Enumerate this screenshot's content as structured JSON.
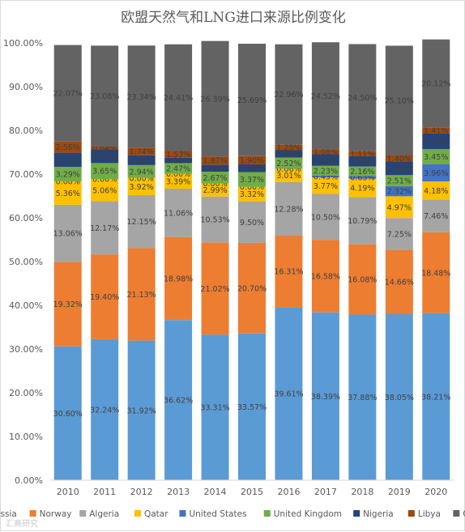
{
  "chart_data": {
    "type": "bar",
    "stacked": true,
    "title": "欧盟天然气和LNG进口来源比例变化",
    "xlabel": "",
    "ylabel": "",
    "ylim": [
      0,
      100
    ],
    "yticks": [
      "0.00%",
      "10.00%",
      "20.00%",
      "30.00%",
      "40.00%",
      "50.00%",
      "60.00%",
      "70.00%",
      "80.00%",
      "90.00%",
      "100.00%"
    ],
    "grid": false,
    "legend_position": "bottom",
    "categories": [
      "2010",
      "2011",
      "2012",
      "2013",
      "2014",
      "2015",
      "2016",
      "2017",
      "2018",
      "2019",
      "2020"
    ],
    "series": [
      {
        "name": "Russia",
        "color": "#5b9bd5",
        "values": [
          30.6,
          32.24,
          31.92,
          36.62,
          33.31,
          33.57,
          39.61,
          38.39,
          37.88,
          38.05,
          38.21
        ],
        "labels": [
          "30.60%",
          "32.24%",
          "31.92%",
          "36.62%",
          "33.31%",
          "33.57%",
          "39.61%",
          "38.39%",
          "37.88%",
          "38.05%",
          "38.21%"
        ]
      },
      {
        "name": "Norway",
        "color": "#ed7d31",
        "values": [
          19.32,
          19.4,
          21.13,
          18.98,
          21.02,
          20.7,
          16.31,
          16.58,
          16.08,
          14.66,
          18.48
        ],
        "labels": [
          "19.32%",
          "19.40%",
          "21.13%",
          "18.98%",
          "21.02%",
          "20.70%",
          "16.31%",
          "16.58%",
          "16.08%",
          "14.66%",
          "18.48%"
        ]
      },
      {
        "name": "Algeria",
        "color": "#a5a5a5",
        "values": [
          13.06,
          12.17,
          12.15,
          11.06,
          10.53,
          9.5,
          12.28,
          10.5,
          10.79,
          7.25,
          7.46
        ],
        "labels": [
          "13.06%",
          "12.17%",
          "12.15%",
          "11.06%",
          "10.53%",
          "9.50%",
          "12.28%",
          "10.50%",
          "10.79%",
          "7.25%",
          "7.46%"
        ]
      },
      {
        "name": "Qatar",
        "color": "#ffc000",
        "values": [
          5.36,
          5.06,
          3.92,
          3.39,
          2.99,
          3.32,
          3.01,
          3.77,
          4.19,
          4.97,
          4.18
        ],
        "labels": [
          "5.36%",
          "5.06%",
          "3.92%",
          "3.39%",
          "2.99%",
          "3.32%",
          "3.01%",
          "3.77%",
          "4.19%",
          "4.97%",
          "4.18%"
        ]
      },
      {
        "name": "United States",
        "color": "#4472c4",
        "values": [
          0.0,
          0.0,
          0.0,
          0.0,
          0.0,
          0.0,
          0.06,
          0.43,
          0.63,
          2.32,
          3.96
        ],
        "labels": [
          "0.00%",
          "0.00%",
          "0.00%",
          "0.00%",
          "0.00%",
          "0.00%",
          "0.06%",
          "0.43%",
          "0.63%",
          "2.32%",
          "3.96%"
        ]
      },
      {
        "name": "United Kingdom",
        "color": "#70ad47",
        "values": [
          3.29,
          3.65,
          2.94,
          2.47,
          2.67,
          3.37,
          2.52,
          2.23,
          2.16,
          2.51,
          3.45
        ],
        "labels": [
          "3.29%",
          "3.65%",
          "2.94%",
          "2.47%",
          "2.67%",
          "3.37%",
          "2.52%",
          "2.23%",
          "2.16%",
          "2.51%",
          "3.45%"
        ]
      },
      {
        "name": "Nigeria",
        "color": "#264478",
        "values": [
          3.26,
          3.14,
          2.26,
          1.22,
          1.66,
          1.76,
          1.68,
          2.65,
          2.39,
          3.1,
          3.53
        ],
        "labels": [
          "3.26%",
          "3.14%",
          "2.26%",
          "1.22%",
          "1.66%",
          "1.76%",
          "1.68%",
          "2.65%",
          "2.39%",
          "3.10%",
          "3.53%"
        ]
      },
      {
        "name": "Libya",
        "color": "#9e480e",
        "values": [
          2.56,
          0.64,
          1.74,
          1.53,
          1.87,
          1.9,
          1.25,
          1.08,
          1.11,
          1.4,
          1.41
        ],
        "labels": [
          "2.56%",
          "0.64%",
          "1.74%",
          "1.53%",
          "1.87%",
          "1.90%",
          "1.25%",
          "1.08%",
          "1.11%",
          "1.40%",
          "1.41%"
        ]
      },
      {
        "name": "Others",
        "color": "#636363",
        "values": [
          22.07,
          23.08,
          23.34,
          24.41,
          26.39,
          25.69,
          22.96,
          24.52,
          24.5,
          25.1,
          20.12
        ],
        "labels": [
          "22.07%",
          "23.08%",
          "23.34%",
          "24.41%",
          "26.39%",
          "25.69%",
          "22.96%",
          "24.52%",
          "24.50%",
          "25.10%",
          "20.12%"
        ]
      }
    ]
  },
  "watermark": "汇熹研究"
}
